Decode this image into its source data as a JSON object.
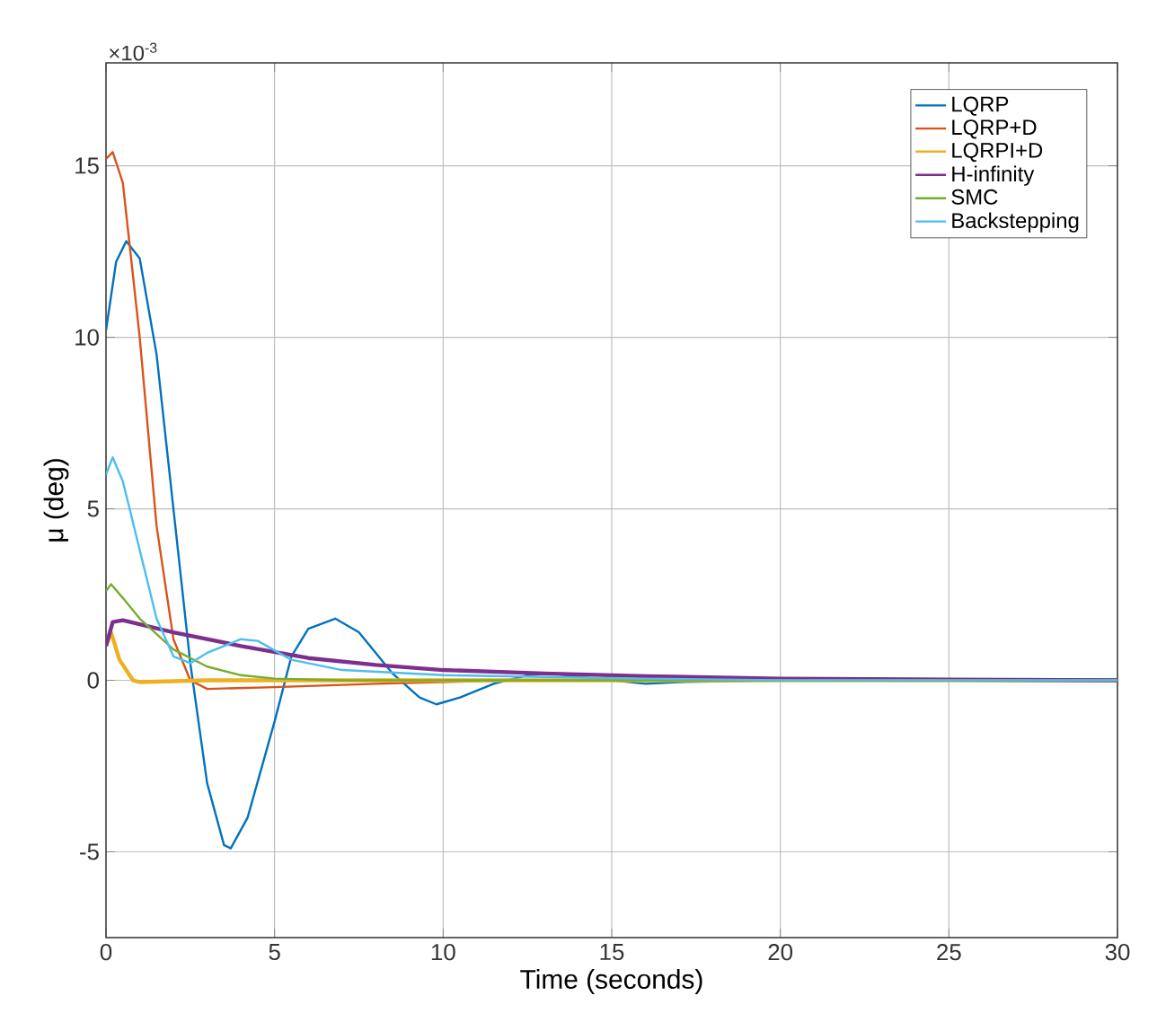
{
  "chart_data": {
    "type": "line",
    "xlabel": "Time (seconds)",
    "ylabel": "μ (deg)",
    "annotations": [
      "×10$^{-3}$"
    ],
    "xlim": [
      0,
      30
    ],
    "ylim": [
      -7.5,
      18
    ],
    "xticks": [
      0,
      5,
      10,
      15,
      20,
      25,
      30
    ],
    "yticks": [
      -5,
      0,
      5,
      10,
      15
    ],
    "grid": true,
    "legend": "top right",
    "line_style": "solid",
    "marker": "none",
    "series": [
      {
        "name": "LQRP",
        "color": "#0072bd",
        "x": [
          0,
          0.3,
          0.6,
          1.0,
          1.5,
          2,
          2.5,
          3,
          3.5,
          3.7,
          4.2,
          5,
          5.5,
          6,
          6.8,
          7.5,
          8.5,
          9.3,
          9.8,
          10.5,
          11.5,
          12.5,
          13.2,
          14.5,
          16,
          17,
          20,
          30
        ],
        "values": [
          10.2,
          12.2,
          12.8,
          12.3,
          9.5,
          5,
          0.5,
          -3,
          -4.8,
          -4.9,
          -4,
          -1.2,
          0.7,
          1.5,
          1.8,
          1.4,
          0.2,
          -0.5,
          -0.7,
          -0.5,
          -0.1,
          0.15,
          0.2,
          0.05,
          -0.1,
          -0.05,
          0,
          0
        ]
      },
      {
        "name": "LQRP+D",
        "color": "#d95319",
        "x": [
          0,
          0.2,
          0.5,
          1,
          1.5,
          2,
          2.5,
          3,
          5,
          8,
          12,
          30
        ],
        "values": [
          15.2,
          15.4,
          14.5,
          10,
          4.5,
          1.2,
          0,
          -0.25,
          -0.2,
          -0.1,
          0,
          0
        ]
      },
      {
        "name": "LQRPI+D",
        "color": "#edb120",
        "x": [
          0,
          0.15,
          0.4,
          0.8,
          1,
          3,
          30
        ],
        "values": [
          1.0,
          1.4,
          0.6,
          0,
          -0.05,
          0,
          0
        ]
      },
      {
        "name": "H-infinity",
        "color": "#7e2f8e",
        "x": [
          0,
          0.2,
          0.5,
          2,
          4,
          6,
          8,
          10,
          13,
          16,
          20,
          25,
          30
        ],
        "values": [
          1.0,
          1.7,
          1.75,
          1.4,
          1.0,
          0.65,
          0.45,
          0.3,
          0.2,
          0.12,
          0.05,
          0.02,
          0
        ]
      },
      {
        "name": "SMC",
        "color": "#77ac30",
        "x": [
          0,
          0.15,
          0.5,
          1,
          2,
          3,
          4,
          5,
          7,
          30
        ],
        "values": [
          2.6,
          2.8,
          2.4,
          1.8,
          0.9,
          0.4,
          0.15,
          0.05,
          0,
          0
        ]
      },
      {
        "name": "Backstepping",
        "color": "#4dbeee",
        "x": [
          0,
          0.2,
          0.5,
          1,
          1.5,
          2,
          2.5,
          3,
          4,
          4.5,
          5.5,
          7,
          10,
          13,
          16,
          20,
          30
        ],
        "values": [
          6.0,
          6.5,
          5.8,
          3.8,
          1.8,
          0.7,
          0.5,
          0.8,
          1.2,
          1.15,
          0.6,
          0.3,
          0.15,
          0.1,
          0.05,
          0,
          0
        ]
      }
    ]
  }
}
